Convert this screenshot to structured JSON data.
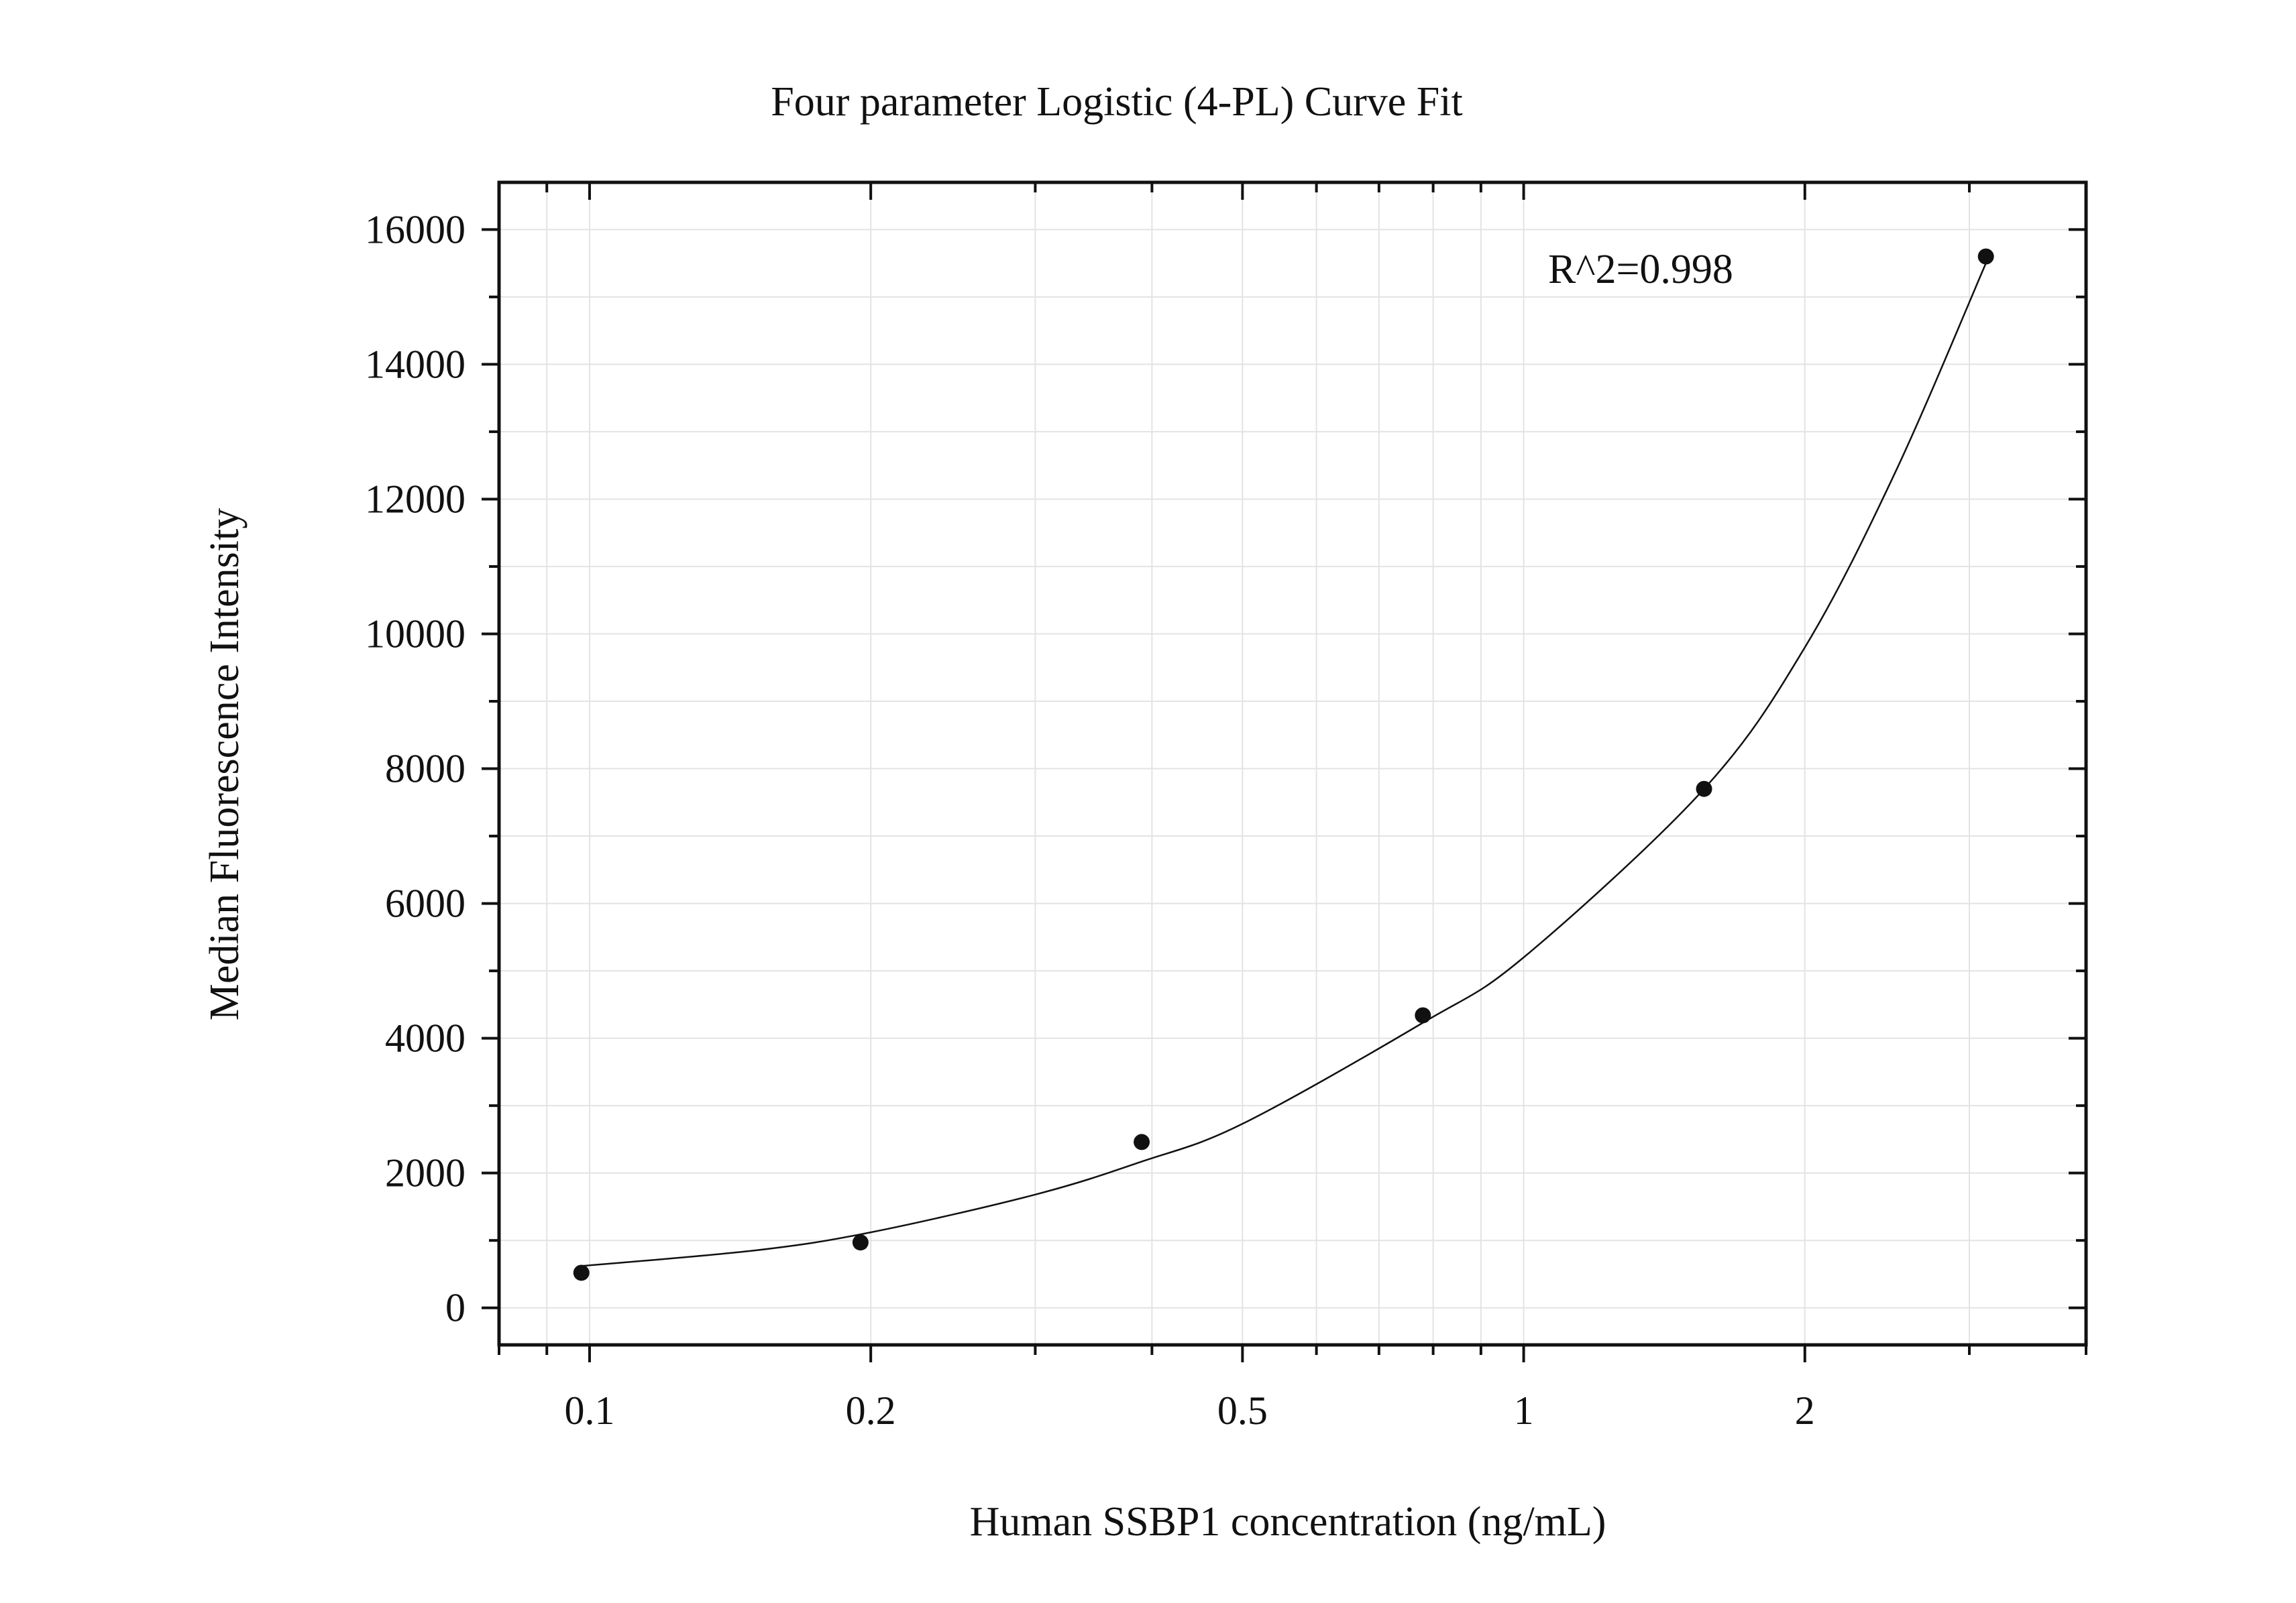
{
  "chart_data": {
    "type": "scatter",
    "title": "Four parameter Logistic (4-PL) Curve Fit",
    "xlabel": "Human SSBP1 concentration (ng/mL)",
    "ylabel": "Median Fluorescence Intensity",
    "x_scale": "log",
    "xlim": [
      0.08,
      4.0
    ],
    "ylim": [
      -550,
      16700
    ],
    "x_ticks": [
      0.1,
      0.2,
      0.5,
      1,
      2
    ],
    "x_tick_labels": [
      "0.1",
      "0.2",
      "0.5",
      "1",
      "2"
    ],
    "y_ticks": [
      0,
      2000,
      4000,
      6000,
      8000,
      10000,
      12000,
      14000,
      16000
    ],
    "y_tick_labels": [
      "0",
      "2000",
      "4000",
      "6000",
      "8000",
      "10000",
      "12000",
      "14000",
      "16000"
    ],
    "grid": true,
    "annotation": "R^2=0.998",
    "series": [
      {
        "values": [
          {
            "x": 0.098,
            "y": 520
          },
          {
            "x": 0.195,
            "y": 970
          },
          {
            "x": 0.39,
            "y": 2460
          },
          {
            "x": 0.78,
            "y": 4340
          },
          {
            "x": 1.56,
            "y": 7700
          },
          {
            "x": 3.125,
            "y": 15600
          }
        ]
      }
    ],
    "fit_curve": {
      "model": "4-PL",
      "points": [
        {
          "x": 0.098,
          "y": 620
        },
        {
          "x": 0.15,
          "y": 850
        },
        {
          "x": 0.2,
          "y": 1120
        },
        {
          "x": 0.3,
          "y": 1680
        },
        {
          "x": 0.39,
          "y": 2170
        },
        {
          "x": 0.5,
          "y": 2730
        },
        {
          "x": 0.78,
          "y": 4230
        },
        {
          "x": 1.0,
          "y": 5200
        },
        {
          "x": 1.56,
          "y": 7700
        },
        {
          "x": 2.0,
          "y": 9800
        },
        {
          "x": 2.5,
          "y": 12400
        },
        {
          "x": 3.125,
          "y": 15500
        }
      ]
    },
    "colors": {
      "points": "#111111",
      "curve": "#111111",
      "grid": "#e3e3e3",
      "frame": "#111111"
    }
  }
}
